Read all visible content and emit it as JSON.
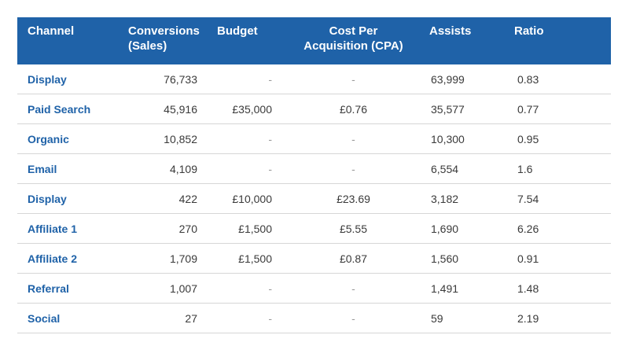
{
  "table": {
    "headers": {
      "channel": "Channel",
      "conversions_line1": "Conversions",
      "conversions_line2": "(Sales)",
      "budget": "Budget",
      "cpa_line1": "Cost Per",
      "cpa_line2": "Acquisition (CPA)",
      "assists": "Assists",
      "ratio": "Ratio"
    },
    "rows": [
      {
        "channel": "Display",
        "conversions": "76,733",
        "budget": "-",
        "cpa": "-",
        "assists": "63,999",
        "ratio": "0.83"
      },
      {
        "channel": "Paid Search",
        "conversions": "45,916",
        "budget": "£35,000",
        "cpa": "£0.76",
        "assists": "35,577",
        "ratio": "0.77"
      },
      {
        "channel": "Organic",
        "conversions": "10,852",
        "budget": "-",
        "cpa": "-",
        "assists": "10,300",
        "ratio": "0.95"
      },
      {
        "channel": "Email",
        "conversions": "4,109",
        "budget": "-",
        "cpa": "-",
        "assists": "6,554",
        "ratio": "1.6"
      },
      {
        "channel": "Display",
        "conversions": "422",
        "budget": "£10,000",
        "cpa": "£23.69",
        "assists": "3,182",
        "ratio": "7.54"
      },
      {
        "channel": "Affiliate 1",
        "conversions": "270",
        "budget": "£1,500",
        "cpa": "£5.55",
        "assists": "1,690",
        "ratio": "6.26"
      },
      {
        "channel": "Affiliate 2",
        "conversions": "1,709",
        "budget": "£1,500",
        "cpa": "£0.87",
        "assists": "1,560",
        "ratio": "0.91"
      },
      {
        "channel": "Referral",
        "conversions": "1,007",
        "budget": "-",
        "cpa": "-",
        "assists": "1,491",
        "ratio": "1.48"
      },
      {
        "channel": "Social",
        "conversions": "27",
        "budget": "-",
        "cpa": "-",
        "assists": "59",
        "ratio": "2.19"
      }
    ]
  },
  "colors": {
    "header_bg": "#1f62a8",
    "header_text": "#ffffff",
    "channel_text": "#1f62a8",
    "cell_text": "#3a3a3a",
    "row_border": "#d6d6d6"
  }
}
